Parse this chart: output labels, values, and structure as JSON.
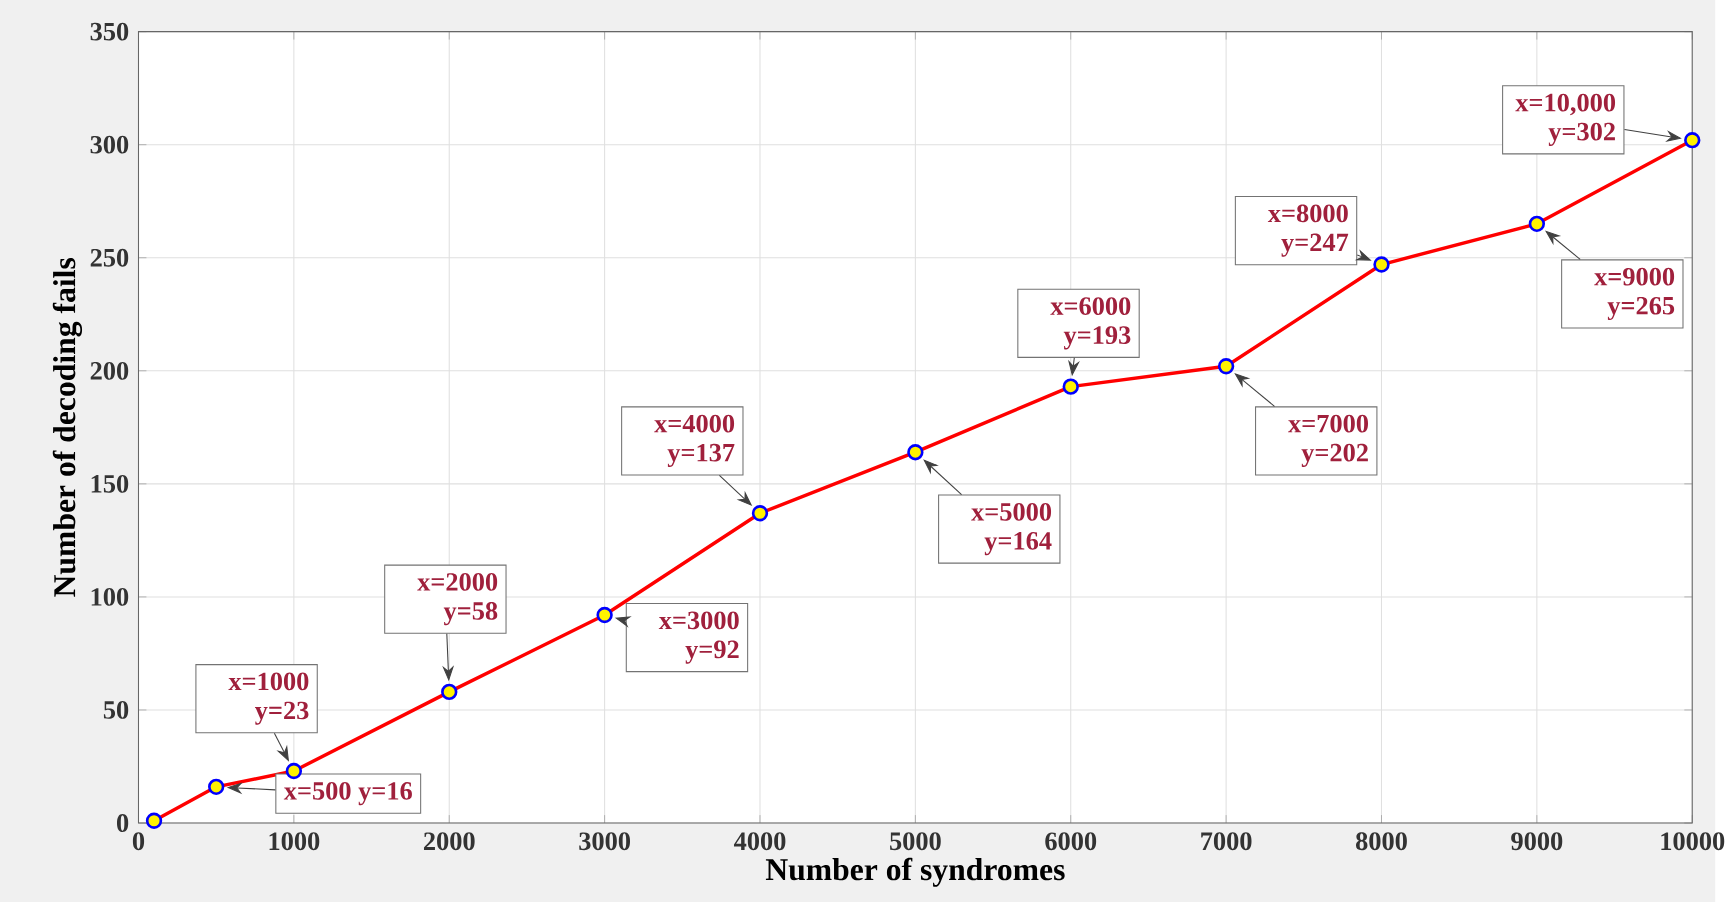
{
  "chart_data": {
    "type": "line",
    "xlabel": "Number of syndromes",
    "ylabel": "Number of decoding fails",
    "x": [
      100,
      500,
      1000,
      2000,
      3000,
      4000,
      5000,
      6000,
      7000,
      8000,
      9000,
      10000
    ],
    "series": [
      {
        "color": "#ff0000",
        "values": [
          1,
          16,
          23,
          58,
          92,
          137,
          164,
          193,
          202,
          247,
          265,
          302
        ]
      }
    ],
    "xlim": [
      0,
      10000
    ],
    "xticks": [
      0,
      1000,
      2000,
      3000,
      4000,
      5000,
      6000,
      7000,
      8000,
      9000,
      10000
    ],
    "ylim": [
      0,
      350
    ],
    "yticks": [
      0,
      50,
      100,
      150,
      200,
      250,
      300,
      350
    ],
    "grid": true,
    "marker": "circle",
    "line_style": "solid",
    "annotations": [
      {
        "text": "x=500 y=16",
        "x": 500,
        "y": 16
      },
      {
        "text": "x=1000 y=23",
        "x": 1000,
        "y": 23
      },
      {
        "text": "x=2000 y=58",
        "x": 2000,
        "y": 58
      },
      {
        "text": "x=3000 y=92",
        "x": 3000,
        "y": 92
      },
      {
        "text": "x=4000 y=137",
        "x": 4000,
        "y": 137
      },
      {
        "text": "x=5000 y=164",
        "x": 5000,
        "y": 164
      },
      {
        "text": "x=6000 y=193",
        "x": 6000,
        "y": 193
      },
      {
        "text": "x=7000 y=202",
        "x": 7000,
        "y": 202
      },
      {
        "text": "x=8000 y=247",
        "x": 8000,
        "y": 247
      },
      {
        "text": "x=9000 y=265",
        "x": 9000,
        "y": 265
      },
      {
        "text": "x=10,000 y=302",
        "x": 10000,
        "y": 302
      }
    ]
  }
}
